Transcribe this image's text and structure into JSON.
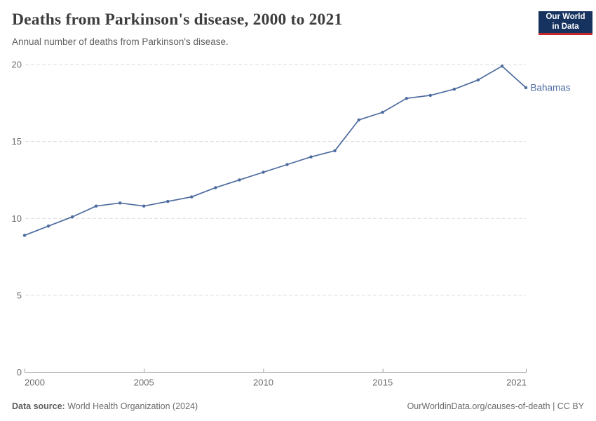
{
  "header": {
    "title": "Deaths from Parkinson's disease, 2000 to 2021",
    "subtitle": "Annual number of deaths from Parkinson's disease."
  },
  "logo": {
    "line1": "Our World",
    "line2": "in Data",
    "bg_color": "#163360",
    "accent_color": "#c22a2e"
  },
  "chart_data": {
    "type": "line",
    "title": "Deaths from Parkinson's disease, 2000 to 2021",
    "xlabel": "",
    "ylabel": "",
    "x": [
      2000,
      2001,
      2002,
      2003,
      2004,
      2005,
      2006,
      2007,
      2008,
      2009,
      2010,
      2011,
      2012,
      2013,
      2014,
      2015,
      2016,
      2017,
      2018,
      2019,
      2020,
      2021
    ],
    "series": [
      {
        "name": "Bahamas",
        "color": "#4c6b9f",
        "values": [
          8.9,
          9.5,
          10.1,
          10.8,
          11.0,
          10.8,
          11.1,
          11.4,
          12.0,
          12.5,
          13.0,
          13.5,
          14.0,
          14.4,
          16.4,
          16.9,
          17.8,
          18.0,
          18.4,
          19.0,
          19.9,
          18.5
        ]
      }
    ],
    "xlim": [
      2000,
      2021
    ],
    "ylim": [
      0,
      20
    ],
    "xticks": [
      2000,
      2005,
      2010,
      2015,
      2021
    ],
    "yticks": [
      0,
      5,
      10,
      15,
      20
    ],
    "grid": "horizontal-dashed",
    "legend_position": "end-of-line-label"
  },
  "footer": {
    "source_label": "Data source:",
    "source_value": " World Health Organization (2024)",
    "rights": "OurWorldinData.org/causes-of-death | CC BY"
  }
}
